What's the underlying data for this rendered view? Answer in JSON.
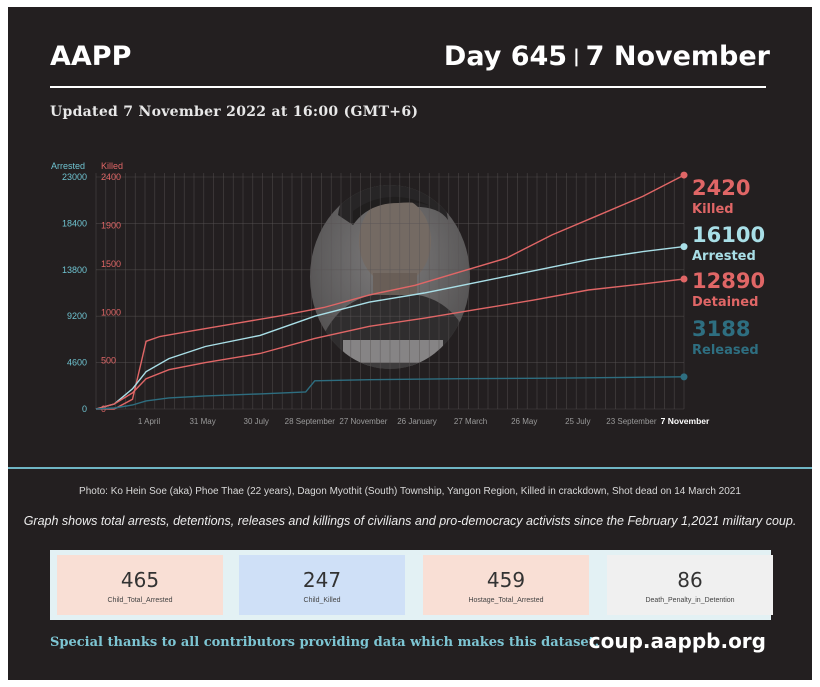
{
  "header": {
    "org": "AAPP",
    "day": "Day 645",
    "separator": "|",
    "date": "7 November",
    "updated": "Updated 7 November 2022 at 16:00 (GMT+6)"
  },
  "chart_data": {
    "type": "line",
    "x_tick_labels": [
      "1 April",
      "31 May",
      "30 July",
      "28 September",
      "27 November",
      "26 January",
      "27 March",
      "26 May",
      "25 July",
      "23 September",
      "7 November"
    ],
    "x_range_days": [
      0,
      645
    ],
    "left_axis": {
      "label": "Arrested",
      "ticks": [
        0,
        4600,
        9200,
        13800,
        18400,
        23000
      ],
      "range": [
        0,
        23000
      ],
      "color": "#6fc3d0"
    },
    "right_axis": {
      "label": "Killed",
      "ticks": [
        0,
        500,
        1000,
        1500,
        1900,
        2400
      ],
      "range": [
        0,
        2400
      ],
      "color": "#e06666"
    },
    "series": [
      {
        "name": "Killed",
        "final": "2420",
        "axis": "killed",
        "color": "#e06666",
        "points": [
          [
            0,
            0
          ],
          [
            20,
            0
          ],
          [
            40,
            100
          ],
          [
            50,
            500
          ],
          [
            55,
            700
          ],
          [
            70,
            750
          ],
          [
            100,
            800
          ],
          [
            150,
            880
          ],
          [
            200,
            960
          ],
          [
            250,
            1050
          ],
          [
            300,
            1180
          ],
          [
            350,
            1280
          ],
          [
            400,
            1420
          ],
          [
            450,
            1560
          ],
          [
            500,
            1800
          ],
          [
            550,
            2000
          ],
          [
            600,
            2200
          ],
          [
            645,
            2420
          ]
        ]
      },
      {
        "name": "Arrested",
        "final": "16100",
        "axis": "arrested",
        "color": "#a9dfe7",
        "points": [
          [
            0,
            0
          ],
          [
            20,
            500
          ],
          [
            40,
            2000
          ],
          [
            55,
            3700
          ],
          [
            80,
            5000
          ],
          [
            120,
            6200
          ],
          [
            180,
            7300
          ],
          [
            240,
            9200
          ],
          [
            300,
            10600
          ],
          [
            360,
            11500
          ],
          [
            420,
            12600
          ],
          [
            480,
            13700
          ],
          [
            540,
            14800
          ],
          [
            600,
            15600
          ],
          [
            645,
            16100
          ]
        ]
      },
      {
        "name": "Detained",
        "final": "12890",
        "axis": "arrested",
        "color": "#e06666",
        "points": [
          [
            0,
            0
          ],
          [
            20,
            500
          ],
          [
            40,
            1600
          ],
          [
            55,
            3000
          ],
          [
            80,
            3900
          ],
          [
            120,
            4600
          ],
          [
            180,
            5500
          ],
          [
            240,
            7000
          ],
          [
            300,
            8200
          ],
          [
            360,
            9000
          ],
          [
            420,
            9900
          ],
          [
            480,
            10800
          ],
          [
            540,
            11800
          ],
          [
            600,
            12400
          ],
          [
            645,
            12890
          ]
        ]
      },
      {
        "name": "Released",
        "final": "3188",
        "axis": "arrested",
        "color": "#2e6e80",
        "points": [
          [
            0,
            0
          ],
          [
            20,
            100
          ],
          [
            40,
            400
          ],
          [
            55,
            800
          ],
          [
            80,
            1100
          ],
          [
            120,
            1300
          ],
          [
            180,
            1500
          ],
          [
            230,
            1700
          ],
          [
            240,
            2800
          ],
          [
            300,
            2900
          ],
          [
            400,
            3000
          ],
          [
            500,
            3050
          ],
          [
            600,
            3150
          ],
          [
            645,
            3188
          ]
        ]
      }
    ],
    "grid": true
  },
  "caption": "Photo: Ko Hein Soe (aka) Phoe Thae (22 years), Dagon Myothit (South) Township, Yangon Region, Killed in crackdown, Shot dead on 14 March 2021",
  "graph_note": "Graph shows total arrests, detentions, releases and killings of civilians and pro-democracy activists since the February 1,2021 military coup.",
  "cards": [
    {
      "value": "465",
      "label": "Child_Total_Arrested",
      "color": "#f9dfd5"
    },
    {
      "value": "247",
      "label": "Child_Killed",
      "color": "#cfe0f7"
    },
    {
      "value": "459",
      "label": "Hostage_Total_Arrested",
      "color": "#f9dfd5"
    },
    {
      "value": "86",
      "label": "Death_Penalty_in_Detention",
      "color": "#f0f0f0"
    }
  ],
  "footer": {
    "thanks": "Special thanks to all contributors providing data which makes this dataset.",
    "site": "coup.aappb.org"
  }
}
